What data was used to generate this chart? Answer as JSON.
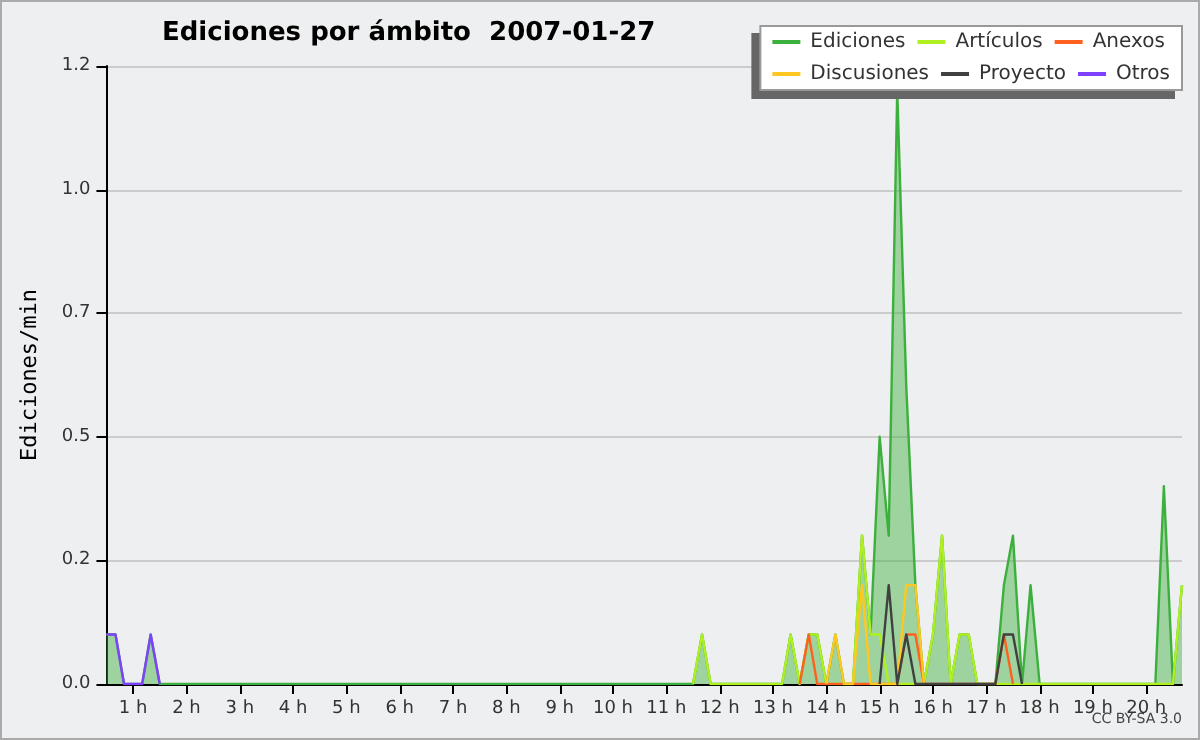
{
  "chart_data": {
    "type": "line",
    "title": "Ediciones por ámbito  2007-01-27",
    "ylabel": "Ediciones/min",
    "annotations": [
      "CC BY-SA 3.0"
    ],
    "xlim": [
      0.5,
      20.67
    ],
    "ylim": [
      0,
      1.25
    ],
    "xticks": [
      {
        "value": 1,
        "label": "1 h"
      },
      {
        "value": 2,
        "label": "2 h"
      },
      {
        "value": 3,
        "label": "3 h"
      },
      {
        "value": 4,
        "label": "4 h"
      },
      {
        "value": 5,
        "label": "5 h"
      },
      {
        "value": 6,
        "label": "6 h"
      },
      {
        "value": 7,
        "label": "7 h"
      },
      {
        "value": 8,
        "label": "8 h"
      },
      {
        "value": 9,
        "label": "9 h"
      },
      {
        "value": 10,
        "label": "10 h"
      },
      {
        "value": 11,
        "label": "11 h"
      },
      {
        "value": 12,
        "label": "12 h"
      },
      {
        "value": 13,
        "label": "13 h"
      },
      {
        "value": 14,
        "label": "14 h"
      },
      {
        "value": 15,
        "label": "15 h"
      },
      {
        "value": 16,
        "label": "16 h"
      },
      {
        "value": 17,
        "label": "17 h"
      },
      {
        "value": 18,
        "label": "18 h"
      },
      {
        "value": 19,
        "label": "19 h"
      },
      {
        "value": 20,
        "label": "20 h"
      }
    ],
    "yticks": [
      {
        "value": 0,
        "label": "0.0"
      },
      {
        "value": 0.25,
        "label": "0.2"
      },
      {
        "value": 0.5,
        "label": "0.5"
      },
      {
        "value": 0.75,
        "label": "0.7"
      },
      {
        "value": 1.0,
        "label": "1.0"
      },
      {
        "value": 1.25,
        "label": "1.2"
      }
    ],
    "grid": "y",
    "legend": "top right",
    "marker": "none",
    "series": [
      {
        "name": "Ediciones",
        "type": "area",
        "color": "#3cb03c",
        "x": [
          0.5,
          0.67,
          0.83,
          1.17,
          1.33,
          1.5,
          11.5,
          11.67,
          11.83,
          13.17,
          13.33,
          13.5,
          13.67,
          13.83,
          14,
          14.17,
          14.33,
          14.5,
          14.67,
          14.83,
          15,
          15.17,
          15.33,
          15.5,
          15.67,
          15.83,
          16,
          16.17,
          16.33,
          16.5,
          16.67,
          16.83,
          17.17,
          17.33,
          17.5,
          17.67,
          17.83,
          18,
          20.17,
          20.33,
          20.5,
          20.67
        ],
        "values": [
          0.1,
          0.1,
          0,
          0,
          0.1,
          0,
          0,
          0.1,
          0,
          0,
          0.1,
          0,
          0.1,
          0.1,
          0,
          0.1,
          0,
          0,
          0.3,
          0.1,
          0.5,
          0.3,
          1.2,
          0.6,
          0.2,
          0,
          0.1,
          0.3,
          0,
          0.1,
          0.1,
          0,
          0,
          0.2,
          0.3,
          0,
          0.2,
          0,
          0,
          0.4,
          0,
          0.2
        ]
      },
      {
        "name": "Artículos",
        "color": "#b0f020",
        "x": [
          11.5,
          11.67,
          11.83,
          13.17,
          13.33,
          13.5,
          13.67,
          13.83,
          14,
          14.5,
          14.67,
          14.83,
          15,
          15.17,
          15.83,
          16,
          16.17,
          16.33,
          16.5,
          16.67,
          16.83,
          20.5,
          20.67
        ],
        "values": [
          0,
          0.1,
          0,
          0,
          0.1,
          0,
          0.1,
          0.1,
          0,
          0,
          0.3,
          0.1,
          0.1,
          0,
          0,
          0.1,
          0.3,
          0,
          0.1,
          0.1,
          0,
          0,
          0.2
        ]
      },
      {
        "name": "Anexos",
        "color": "#ff6020",
        "x": [
          13.5,
          13.67,
          13.83,
          15.33,
          15.5,
          15.67,
          15.83,
          17.17,
          17.33,
          17.5
        ],
        "values": [
          0,
          0.1,
          0,
          0,
          0.1,
          0.1,
          0,
          0,
          0.1,
          0
        ]
      },
      {
        "name": "Discusiones",
        "color": "#ffc820",
        "x": [
          14,
          14.17,
          14.33,
          14.5,
          14.67,
          14.83,
          15.33,
          15.5,
          15.67,
          15.83
        ],
        "values": [
          0,
          0.1,
          0,
          0,
          0.2,
          0,
          0,
          0.2,
          0.2,
          0
        ]
      },
      {
        "name": "Proyecto",
        "color": "#404040",
        "x": [
          15,
          15.17,
          15.33,
          15.5,
          15.67,
          17.17,
          17.33,
          17.5,
          17.67
        ],
        "values": [
          0,
          0.2,
          0,
          0.1,
          0,
          0,
          0.1,
          0.1,
          0
        ]
      },
      {
        "name": "Otros",
        "color": "#8040ff",
        "x": [
          0.5,
          0.67,
          0.83,
          1.17,
          1.33,
          1.5
        ],
        "values": [
          0.1,
          0.1,
          0,
          0,
          0.1,
          0
        ]
      }
    ]
  }
}
